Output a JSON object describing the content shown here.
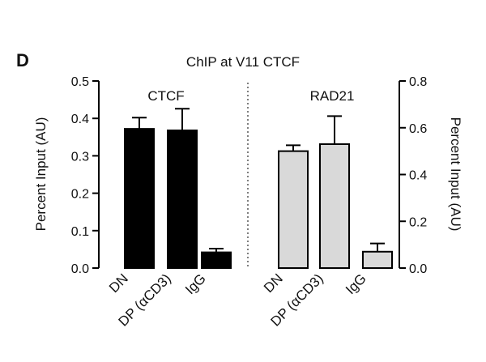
{
  "panel_label": "D",
  "chart_data": {
    "type": "bar",
    "title": "ChIP at V11 CTCF",
    "error_bars": true,
    "grid": false,
    "categories": [
      "DN",
      "DP (αCD3)",
      "IgG"
    ],
    "panels": [
      {
        "name": "CTCF",
        "axis": "left",
        "ylabel": "Percent Input (AU)",
        "ylim": [
          0,
          0.5
        ],
        "yticks": [
          "0.0",
          "0.1",
          "0.2",
          "0.3",
          "0.4",
          "0.5"
        ],
        "values": [
          0.372,
          0.368,
          0.042
        ],
        "errors": [
          0.03,
          0.058,
          0.01
        ],
        "color": "#000000"
      },
      {
        "name": "RAD21",
        "axis": "right",
        "ylabel": "Percent Input (AU)",
        "ylim": [
          0,
          0.8
        ],
        "yticks": [
          "0.0",
          "0.2",
          "0.4",
          "0.6",
          "0.8"
        ],
        "values": [
          0.5,
          0.53,
          0.07
        ],
        "errors": [
          0.025,
          0.12,
          0.035
        ],
        "color": "#d9d9d9"
      }
    ]
  }
}
